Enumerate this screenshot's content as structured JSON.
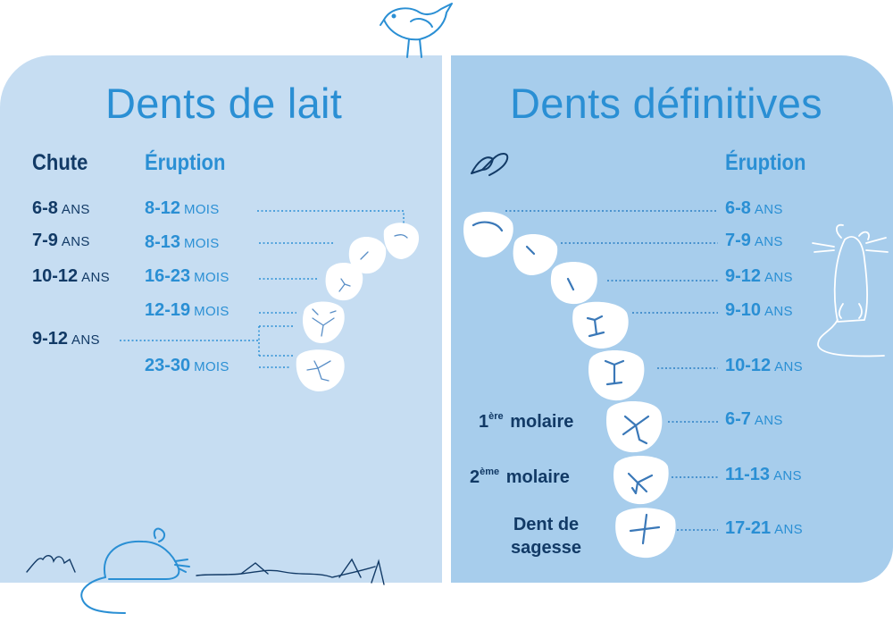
{
  "left_panel": {
    "title": "Dents de lait",
    "chute_header": "Chute",
    "eruption_header": "Éruption",
    "chute": [
      {
        "num": "6-8",
        "unit": "ANS"
      },
      {
        "num": "7-9",
        "unit": "ANS"
      },
      {
        "num": "10-12",
        "unit": "ANS"
      },
      {
        "num": "9-12",
        "unit": "ANS"
      }
    ],
    "eruption": [
      {
        "num": "8-12",
        "unit": "MOIS"
      },
      {
        "num": "8-13",
        "unit": "MOIS"
      },
      {
        "num": "16-23",
        "unit": "MOIS"
      },
      {
        "num": "12-19",
        "unit": "MOIS"
      },
      {
        "num": "23-30",
        "unit": "MOIS"
      }
    ]
  },
  "right_panel": {
    "title": "Dents définitives",
    "eruption_header": "Éruption",
    "eruption": [
      {
        "num": "6-8",
        "unit": "ANS"
      },
      {
        "num": "7-9",
        "unit": "ANS"
      },
      {
        "num": "9-12",
        "unit": "ANS"
      },
      {
        "num": "9-10",
        "unit": "ANS"
      },
      {
        "num": "10-12",
        "unit": "ANS"
      },
      {
        "num": "6-7",
        "unit": "ANS"
      },
      {
        "num": "11-13",
        "unit": "ANS"
      },
      {
        "num": "17-21",
        "unit": "ANS"
      }
    ],
    "labels": {
      "first_molar_sup": "ère",
      "first_molar_num": "1",
      "first_molar_text": "molaire",
      "second_molar_sup": "ème",
      "second_molar_num": "2",
      "second_molar_text": "molaire",
      "wisdom_line1": "Dent de",
      "wisdom_line2": "sagesse"
    }
  },
  "colors": {
    "left_panel_bg": "#c6ddf2",
    "right_panel_bg": "#a7cdec",
    "accent_blue": "#2a8fd4",
    "dark_navy": "#123a66",
    "tooth_fill": "#ffffff"
  },
  "icons": [
    "bird-icon",
    "butterfly-icon",
    "mouse-icon",
    "rat-icon",
    "grass-decoration"
  ]
}
